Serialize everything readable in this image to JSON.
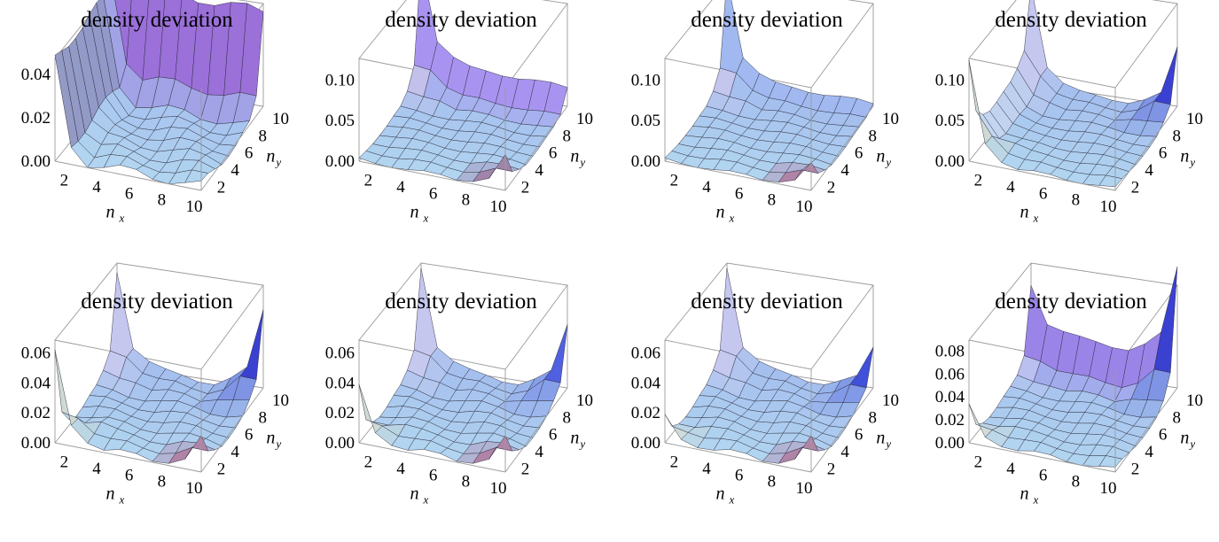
{
  "figure": {
    "panel_count": 8
  },
  "chart_data": [
    {
      "type": "surface",
      "title": "density deviation",
      "xlabel": "n",
      "xlabel_sub": "x",
      "ylabel": "n",
      "ylabel_sub": "y",
      "x_ticks": [
        "2",
        "4",
        "6",
        "8",
        "10"
      ],
      "y_ticks": [
        "2",
        "4",
        "6",
        "8",
        "10"
      ],
      "z_ticks": [
        "0.04",
        "0.02",
        "0.00"
      ],
      "zlim": [
        0,
        0.045
      ],
      "grid_size": [
        10,
        10
      ],
      "features": [
        {
          "kind": "ridge_x",
          "at": 1,
          "height": 0.045,
          "color": "#5a2a6e"
        },
        {
          "kind": "wall_y",
          "at": 10,
          "height": 0.045,
          "color": "#9a6ad8"
        }
      ]
    },
    {
      "type": "surface",
      "title": "density deviation",
      "xlabel": "n",
      "xlabel_sub": "x",
      "ylabel": "n",
      "ylabel_sub": "y",
      "x_ticks": [
        "2",
        "4",
        "6",
        "8",
        "10"
      ],
      "y_ticks": [
        "2",
        "4",
        "6",
        "8",
        "10"
      ],
      "z_ticks": [
        "0.10",
        "0.05",
        "0.00"
      ],
      "zlim": [
        0,
        0.12
      ],
      "grid_size": [
        10,
        10
      ],
      "features": [
        {
          "kind": "spike",
          "x": 1,
          "y": 10,
          "height": 0.12,
          "color": "#f0b8e8"
        },
        {
          "kind": "spike",
          "x": 10,
          "y": 1,
          "height": 0.04,
          "color": "#8a2050"
        },
        {
          "kind": "wall_y",
          "at": 10,
          "height": 0.03,
          "color": "#a890f0"
        }
      ]
    },
    {
      "type": "surface",
      "title": "density deviation",
      "xlabel": "n",
      "xlabel_sub": "x",
      "ylabel": "n",
      "ylabel_sub": "y",
      "x_ticks": [
        "2",
        "4",
        "6",
        "8",
        "10"
      ],
      "y_ticks": [
        "2",
        "4",
        "6",
        "8",
        "10"
      ],
      "z_ticks": [
        "0.10",
        "0.05",
        "0.00"
      ],
      "zlim": [
        0,
        0.12
      ],
      "grid_size": [
        10,
        10
      ],
      "features": [
        {
          "kind": "spike",
          "x": 1,
          "y": 10,
          "height": 0.12,
          "color": "#f5c8ee"
        },
        {
          "kind": "spike",
          "x": 10,
          "y": 1,
          "height": 0.03,
          "color": "#b02048"
        },
        {
          "kind": "wall_y",
          "at": 10,
          "height": 0.01,
          "color": "#a0b8f0"
        }
      ]
    },
    {
      "type": "surface",
      "title": "density deviation",
      "xlabel": "n",
      "xlabel_sub": "x",
      "ylabel": "n",
      "ylabel_sub": "y",
      "x_ticks": [
        "2",
        "4",
        "6",
        "8",
        "10"
      ],
      "y_ticks": [
        "2",
        "4",
        "6",
        "8",
        "10"
      ],
      "z_ticks": [
        "0.10",
        "0.05",
        "0.00"
      ],
      "zlim": [
        0,
        0.12
      ],
      "grid_size": [
        10,
        10
      ],
      "features": [
        {
          "kind": "spike",
          "x": 1,
          "y": 1,
          "height": 0.09,
          "color": "#f5e0b0"
        },
        {
          "kind": "spike",
          "x": 1,
          "y": 10,
          "height": 0.09,
          "color": "#f8d0f0"
        },
        {
          "kind": "spike",
          "x": 10,
          "y": 10,
          "height": 0.08,
          "color": "#3a40d0"
        },
        {
          "kind": "ridge_x",
          "at": 1,
          "height": 0.03,
          "color": "#f0e0f0"
        }
      ]
    },
    {
      "type": "surface",
      "title": "density deviation",
      "xlabel": "n",
      "xlabel_sub": "x",
      "ylabel": "n",
      "ylabel_sub": "y",
      "x_ticks": [
        "2",
        "4",
        "6",
        "8",
        "10"
      ],
      "y_ticks": [
        "2",
        "4",
        "6",
        "8",
        "10"
      ],
      "z_ticks": [
        "0.06",
        "0.04",
        "0.02",
        "0.00"
      ],
      "zlim": [
        0,
        0.065
      ],
      "grid_size": [
        10,
        10
      ],
      "features": [
        {
          "kind": "spike",
          "x": 1,
          "y": 1,
          "height": 0.058,
          "color": "#f5e0b0"
        },
        {
          "kind": "spike",
          "x": 1,
          "y": 10,
          "height": 0.062,
          "color": "#f8d0f0"
        },
        {
          "kind": "spike",
          "x": 10,
          "y": 10,
          "height": 0.055,
          "color": "#3a40d0"
        },
        {
          "kind": "spike",
          "x": 10,
          "y": 1,
          "height": 0.02,
          "color": "#b02048"
        }
      ]
    },
    {
      "type": "surface",
      "title": "density deviation",
      "xlabel": "n",
      "xlabel_sub": "x",
      "ylabel": "n",
      "ylabel_sub": "y",
      "x_ticks": [
        "2",
        "4",
        "6",
        "8",
        "10"
      ],
      "y_ticks": [
        "2",
        "4",
        "6",
        "8",
        "10"
      ],
      "z_ticks": [
        "0.06",
        "0.04",
        "0.02",
        "0.00"
      ],
      "zlim": [
        0,
        0.065
      ],
      "grid_size": [
        10,
        10
      ],
      "features": [
        {
          "kind": "spike",
          "x": 1,
          "y": 1,
          "height": 0.035,
          "color": "#f5e0b0"
        },
        {
          "kind": "spike",
          "x": 1,
          "y": 10,
          "height": 0.065,
          "color": "#f8d0f0"
        },
        {
          "kind": "spike",
          "x": 10,
          "y": 10,
          "height": 0.045,
          "color": "#5060e0"
        },
        {
          "kind": "spike",
          "x": 10,
          "y": 1,
          "height": 0.02,
          "color": "#b02048"
        }
      ]
    },
    {
      "type": "surface",
      "title": "density deviation",
      "xlabel": "n",
      "xlabel_sub": "x",
      "ylabel": "n",
      "ylabel_sub": "y",
      "x_ticks": [
        "2",
        "4",
        "6",
        "8",
        "10"
      ],
      "y_ticks": [
        "2",
        "4",
        "6",
        "8",
        "10"
      ],
      "z_ticks": [
        "0.06",
        "0.04",
        "0.02",
        "0.00"
      ],
      "zlim": [
        0,
        0.065
      ],
      "grid_size": [
        10,
        10
      ],
      "features": [
        {
          "kind": "spike",
          "x": 1,
          "y": 1,
          "height": 0.015,
          "color": "#f5e8c0"
        },
        {
          "kind": "spike",
          "x": 1,
          "y": 10,
          "height": 0.065,
          "color": "#f8d0f0"
        },
        {
          "kind": "spike",
          "x": 10,
          "y": 10,
          "height": 0.03,
          "color": "#4050d8"
        },
        {
          "kind": "spike",
          "x": 10,
          "y": 1,
          "height": 0.02,
          "color": "#b02048"
        }
      ]
    },
    {
      "type": "surface",
      "title": "density deviation",
      "xlabel": "n",
      "xlabel_sub": "x",
      "ylabel": "n",
      "ylabel_sub": "y",
      "x_ticks": [
        "2",
        "4",
        "6",
        "8",
        "10"
      ],
      "y_ticks": [
        "2",
        "4",
        "6",
        "8",
        "10"
      ],
      "z_ticks": [
        "0.08",
        "0.06",
        "0.04",
        "0.02",
        "0.00"
      ],
      "zlim": [
        0,
        0.085
      ],
      "grid_size": [
        10,
        10
      ],
      "features": [
        {
          "kind": "spike",
          "x": 1,
          "y": 1,
          "height": 0.03,
          "color": "#f5e8c0"
        },
        {
          "kind": "spike",
          "x": 1,
          "y": 10,
          "height": 0.04,
          "color": "#d8b8f0"
        },
        {
          "kind": "spike",
          "x": 10,
          "y": 10,
          "height": 0.08,
          "color": "#3a40d0"
        },
        {
          "kind": "wall_y",
          "at": 10,
          "height": 0.03,
          "color": "#9a80e8"
        }
      ]
    }
  ]
}
